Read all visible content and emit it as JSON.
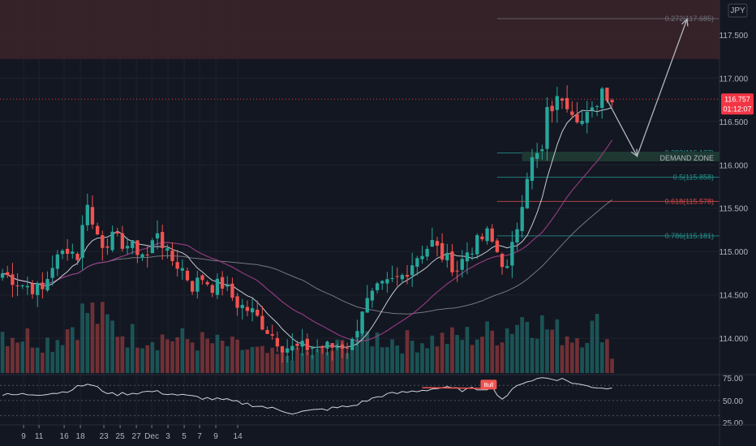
{
  "currency": "JPY",
  "colors": {
    "background": "#131722",
    "up": "#26a69a",
    "down": "#ef5350",
    "supply_zone": "#3a2329",
    "demand_zone": "#1f3a33",
    "ma_fast": "#d1d4dc",
    "ma_slow": "#9c3d86",
    "ma_long": "#8f8f9a",
    "rsi_line": "#d1d4dc",
    "fib_line": "#787b86",
    "price_badge": "#f23645",
    "grid": "#1e222d"
  },
  "price_badge": {
    "price": "116.757",
    "countdown": "01:12:07"
  },
  "price_axis": {
    "ticks": [
      "117.500",
      "117.000",
      "116.500",
      "116.000",
      "115.500",
      "115.000",
      "114.500",
      "114.000"
    ]
  },
  "time_axis": {
    "labels": [
      "9",
      "11",
      "16",
      "18",
      "23",
      "25",
      "27",
      "Dec",
      "3",
      "5",
      "7",
      "9",
      "14"
    ]
  },
  "rsi_axis": {
    "ticks": [
      "75.00",
      "50.00",
      "25.00"
    ]
  },
  "annotations": {
    "demand_zone": "DEMAND ZONE",
    "rsi_label": "Bull"
  },
  "chart_data": {
    "type": "candlestick",
    "title": "",
    "symbol_currency": "JPY",
    "ylim": [
      113.6,
      117.9
    ],
    "last_price": 116.757,
    "supply_zone": [
      117.22,
      117.9
    ],
    "demand_zone": [
      116.04,
      116.15
    ],
    "fibonacci": [
      {
        "ratio": "0.272",
        "price": 117.685,
        "label": "0.272(117.685)"
      },
      {
        "ratio": "0.382",
        "price": 116.137,
        "label": "0.382(116.137)"
      },
      {
        "ratio": "0.5",
        "price": 115.858,
        "label": "0.5(115.858)"
      },
      {
        "ratio": "0.618",
        "price": 115.578,
        "label": "0.618(115.578)"
      },
      {
        "ratio": "0.786",
        "price": 115.181,
        "label": "0.786(115.181)"
      }
    ],
    "projection": [
      {
        "bar": 121,
        "price": 116.75
      },
      {
        "bar": 127,
        "price": 116.1
      },
      {
        "bar": 137,
        "price": 117.68
      }
    ],
    "close_path": [
      [
        0,
        114.75
      ],
      [
        4,
        114.62
      ],
      [
        8,
        114.55
      ],
      [
        10,
        114.85
      ],
      [
        13,
        115.05
      ],
      [
        15,
        114.95
      ],
      [
        17,
        115.6
      ],
      [
        18,
        115.3
      ],
      [
        20,
        115.1
      ],
      [
        22,
        115.15
      ],
      [
        26,
        115.05
      ],
      [
        29,
        114.95
      ],
      [
        31,
        115.25
      ],
      [
        33,
        114.95
      ],
      [
        36,
        114.8
      ],
      [
        38,
        114.6
      ],
      [
        40,
        114.7
      ],
      [
        42,
        114.6
      ],
      [
        44,
        114.62
      ],
      [
        47,
        114.4
      ],
      [
        50,
        114.3
      ],
      [
        53,
        114.1
      ],
      [
        56,
        113.92
      ],
      [
        58,
        113.88
      ],
      [
        62,
        113.9
      ],
      [
        66,
        113.9
      ],
      [
        70,
        113.95
      ],
      [
        72,
        114.35
      ],
      [
        75,
        114.55
      ],
      [
        78,
        114.65
      ],
      [
        80,
        114.72
      ],
      [
        83,
        114.95
      ],
      [
        86,
        115.1
      ],
      [
        88,
        114.95
      ],
      [
        91,
        114.8
      ],
      [
        93,
        115.0
      ],
      [
        95,
        115.1
      ],
      [
        97,
        115.2
      ],
      [
        99,
        115.0
      ],
      [
        101,
        114.78
      ],
      [
        103,
        115.3
      ],
      [
        105,
        115.9
      ],
      [
        106,
        116.05
      ],
      [
        108,
        116.15
      ],
      [
        109,
        116.6
      ],
      [
        112,
        116.8
      ],
      [
        114,
        116.65
      ],
      [
        116,
        116.5
      ],
      [
        118,
        116.6
      ],
      [
        120,
        116.88
      ],
      [
        122,
        116.76
      ]
    ],
    "volume_path": [
      [
        0,
        0.6
      ],
      [
        10,
        0.45
      ],
      [
        17,
        0.9
      ],
      [
        25,
        0.55
      ],
      [
        35,
        0.5
      ],
      [
        45,
        0.4
      ],
      [
        55,
        0.25
      ],
      [
        65,
        0.3
      ],
      [
        72,
        0.55
      ],
      [
        80,
        0.45
      ],
      [
        90,
        0.5
      ],
      [
        100,
        0.6
      ],
      [
        105,
        0.85
      ],
      [
        110,
        0.6
      ],
      [
        115,
        0.55
      ],
      [
        120,
        0.7
      ],
      [
        122,
        0.25
      ]
    ],
    "rsi": {
      "ticks": [
        75,
        50,
        25
      ],
      "label": "Bull",
      "path": [
        [
          0,
          57
        ],
        [
          8,
          59
        ],
        [
          12,
          61
        ],
        [
          17,
          72
        ],
        [
          22,
          58
        ],
        [
          30,
          62
        ],
        [
          38,
          55
        ],
        [
          45,
          50
        ],
        [
          52,
          42
        ],
        [
          58,
          34
        ],
        [
          64,
          38
        ],
        [
          70,
          43
        ],
        [
          76,
          57
        ],
        [
          82,
          62
        ],
        [
          88,
          67
        ],
        [
          92,
          64
        ],
        [
          98,
          67
        ],
        [
          100,
          52
        ],
        [
          104,
          74
        ],
        [
          108,
          80
        ],
        [
          112,
          78
        ],
        [
          116,
          70
        ],
        [
          120,
          67
        ],
        [
          122,
          66
        ]
      ]
    }
  }
}
